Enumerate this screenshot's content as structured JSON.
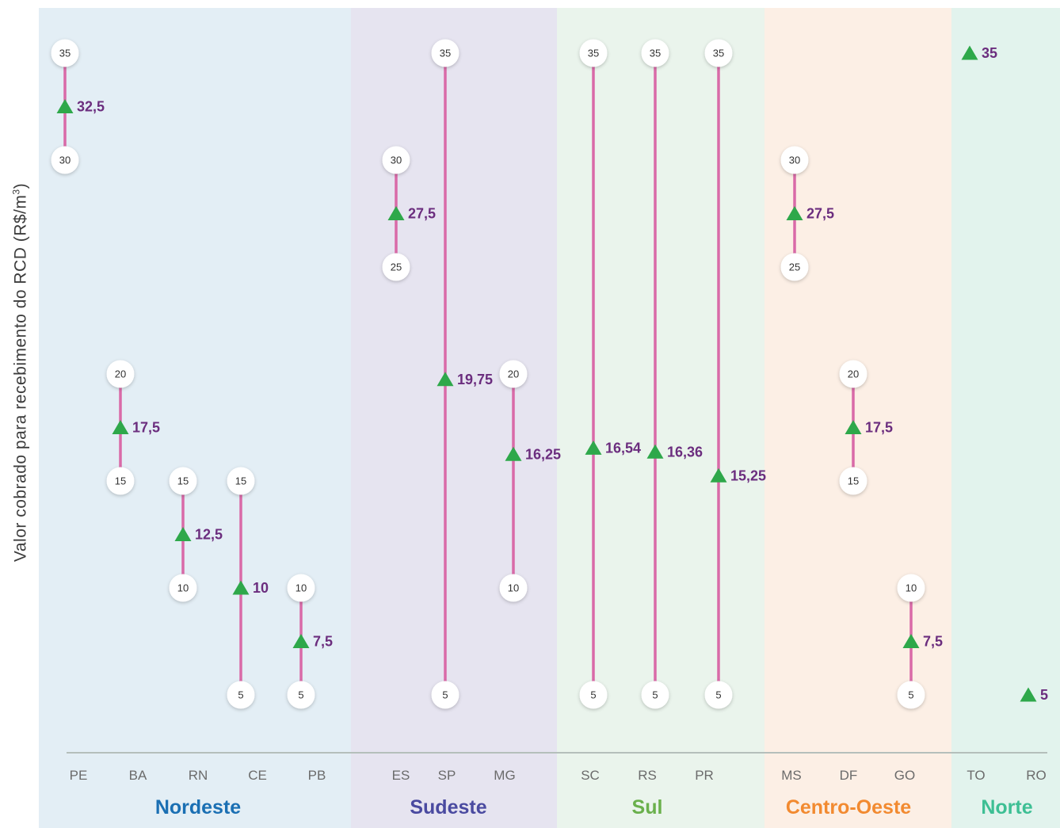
{
  "chart_data": {
    "type": "range-dot",
    "ylabel": "Valor cobrado para recebimento do RCD (R$/m",
    "ylabel_sup": "3",
    "ylabel_close": ")",
    "ylim": [
      0,
      37
    ],
    "regions": [
      {
        "name": "Nordeste",
        "color": "#1a6fb3",
        "bg": "#e3eef5",
        "states": [
          "PE",
          "BA",
          "RN",
          "CE",
          "PB"
        ]
      },
      {
        "name": "Sudeste",
        "color": "#4a4aa0",
        "bg": "#e6e4f0",
        "states": [
          "ES",
          "SP",
          "MG"
        ]
      },
      {
        "name": "Sul",
        "color": "#6ab04c",
        "bg": "#eaf4ec",
        "states": [
          "SC",
          "RS",
          "PR"
        ]
      },
      {
        "name": "Centro-Oeste",
        "color": "#f28a30",
        "bg": "#fcefe5",
        "states": [
          "MS",
          "DF",
          "GO"
        ]
      },
      {
        "name": "Norte",
        "color": "#3dbf94",
        "bg": "#e2f3ed",
        "states": [
          "TO",
          "RO"
        ]
      }
    ],
    "series": [
      {
        "state": "PE",
        "region": "Nordeste",
        "min": 30,
        "max": 35,
        "mean": 32.5,
        "mean_label": "32,5",
        "min_label": "30",
        "max_label": "35"
      },
      {
        "state": "BA",
        "region": "Nordeste",
        "min": 15,
        "max": 20,
        "mean": 17.5,
        "mean_label": "17,5",
        "min_label": "15",
        "max_label": "20"
      },
      {
        "state": "RN",
        "region": "Nordeste",
        "min": 10,
        "max": 15,
        "mean": 12.5,
        "mean_label": "12,5",
        "min_label": "10",
        "max_label": "15"
      },
      {
        "state": "CE",
        "region": "Nordeste",
        "min": 5,
        "max": 15,
        "mean": 10,
        "mean_label": "10",
        "min_label": "5",
        "max_label": "15"
      },
      {
        "state": "PB",
        "region": "Nordeste",
        "min": 5,
        "max": 10,
        "mean": 7.5,
        "mean_label": "7,5",
        "min_label": "5",
        "max_label": "10"
      },
      {
        "state": "ES",
        "region": "Sudeste",
        "min": 25,
        "max": 30,
        "mean": 27.5,
        "mean_label": "27,5",
        "min_label": "25",
        "max_label": "30"
      },
      {
        "state": "SP",
        "region": "Sudeste",
        "min": 5,
        "max": 35,
        "mean": 19.75,
        "mean_label": "19,75",
        "min_label": "5",
        "max_label": "35"
      },
      {
        "state": "MG",
        "region": "Sudeste",
        "min": 10,
        "max": 20,
        "mean": 16.25,
        "mean_label": "16,25",
        "min_label": "10",
        "max_label": "20"
      },
      {
        "state": "SC",
        "region": "Sul",
        "min": 5,
        "max": 35,
        "mean": 16.54,
        "mean_label": "16,54",
        "min_label": "5",
        "max_label": "35"
      },
      {
        "state": "RS",
        "region": "Sul",
        "min": 5,
        "max": 35,
        "mean": 16.36,
        "mean_label": "16,36",
        "min_label": "5",
        "max_label": "35"
      },
      {
        "state": "PR",
        "region": "Sul",
        "min": 5,
        "max": 35,
        "mean": 15.25,
        "mean_label": "15,25",
        "min_label": "5",
        "max_label": "35"
      },
      {
        "state": "MS",
        "region": "Centro-Oeste",
        "min": 25,
        "max": 30,
        "mean": 27.5,
        "mean_label": "27,5",
        "min_label": "25",
        "max_label": "30"
      },
      {
        "state": "DF",
        "region": "Centro-Oeste",
        "min": 15,
        "max": 20,
        "mean": 17.5,
        "mean_label": "17,5",
        "min_label": "15",
        "max_label": "20"
      },
      {
        "state": "GO",
        "region": "Centro-Oeste",
        "min": 5,
        "max": 10,
        "mean": 7.5,
        "mean_label": "7,5",
        "min_label": "5",
        "max_label": "10"
      },
      {
        "state": "TO",
        "region": "Norte",
        "min": null,
        "max": null,
        "mean": 35,
        "mean_label": "35"
      },
      {
        "state": "RO",
        "region": "Norte",
        "min": null,
        "max": null,
        "mean": 5,
        "mean_label": "5"
      }
    ],
    "colors": {
      "range_line": "#d96aa8",
      "mean_marker": "#2ea84a",
      "mean_label": "#6b2d7e",
      "state_label": "#6b6b6b",
      "circle_fill": "#ffffff",
      "circle_text": "#333333",
      "baseline": "#b5bfbb"
    },
    "grid": false,
    "legend": "none"
  }
}
